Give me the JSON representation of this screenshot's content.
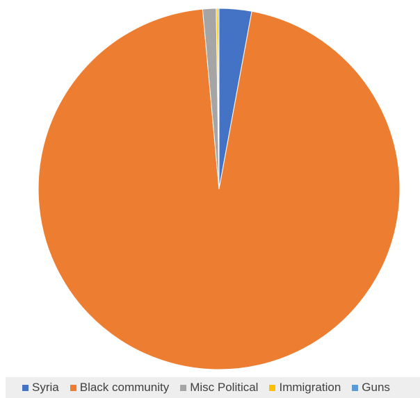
{
  "chart_data": {
    "type": "pie",
    "title": "",
    "categories": [
      "Syria",
      "Black community",
      "Misc Political",
      "Immigration",
      "Guns"
    ],
    "values": [
      2.9,
      95.65,
      1.2,
      0.15,
      0.1
    ],
    "colors": [
      "#4472C4",
      "#ED7D31",
      "#A5A5A5",
      "#FFC000",
      "#5B9BD5"
    ],
    "start_angle_deg": 0,
    "direction": "clockwise",
    "legend_position": "bottom"
  }
}
